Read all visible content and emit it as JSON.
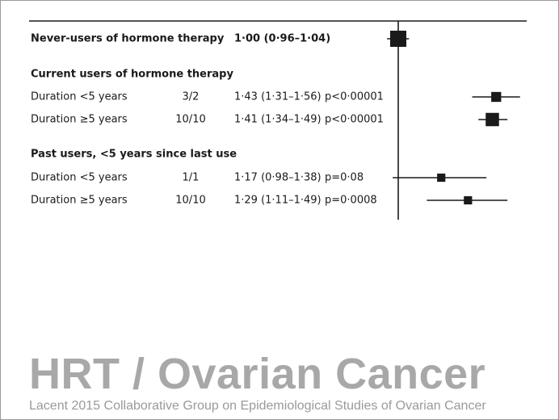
{
  "watermark": {
    "title": "HRT / Ovarian Cancer",
    "credit": "Lacent 2015 Collaborative Group on Epidemiological Studies of Ovarian Cancer"
  },
  "chart_data": {
    "type": "forest",
    "reference_value": 1.0,
    "xlim": [
      0.8,
      2.0
    ],
    "log_scale": true,
    "rows": [
      {
        "kind": "estimate",
        "label": "Never-users of hormone therapy",
        "bold": true,
        "studies": "",
        "rr": 1.0,
        "lo": 0.96,
        "hi": 1.04,
        "rr_text": "1·00 (0·96–1·04)",
        "p_text": "",
        "weight": 1.0
      },
      {
        "kind": "header",
        "label": "Current users of hormone therapy"
      },
      {
        "kind": "estimate",
        "label": "Duration <5 years",
        "bold": false,
        "studies": "3/2",
        "rr": 1.43,
        "lo": 1.31,
        "hi": 1.56,
        "rr_text": "1·43 (1·31–1·56)",
        "p_text": "p<0·00001",
        "weight": 0.45
      },
      {
        "kind": "estimate",
        "label": "Duration ≥5 years",
        "bold": false,
        "studies": "10/10",
        "rr": 1.41,
        "lo": 1.34,
        "hi": 1.49,
        "rr_text": "1·41 (1·34–1·49)",
        "p_text": "p<0·00001",
        "weight": 0.75
      },
      {
        "kind": "header",
        "label": "Past users, <5 years since last use"
      },
      {
        "kind": "estimate",
        "label": "Duration <5 years",
        "bold": false,
        "studies": "1/1",
        "rr": 1.17,
        "lo": 0.98,
        "hi": 1.38,
        "rr_text": "1·17 (0·98–1·38)",
        "p_text": "p=0·08",
        "weight": 0.3
      },
      {
        "kind": "estimate",
        "label": "Duration ≥5 years",
        "bold": false,
        "studies": "10/10",
        "rr": 1.29,
        "lo": 1.11,
        "hi": 1.49,
        "rr_text": "1·29 (1·11–1·49)",
        "p_text": "p=0·0008",
        "weight": 0.3
      }
    ]
  }
}
